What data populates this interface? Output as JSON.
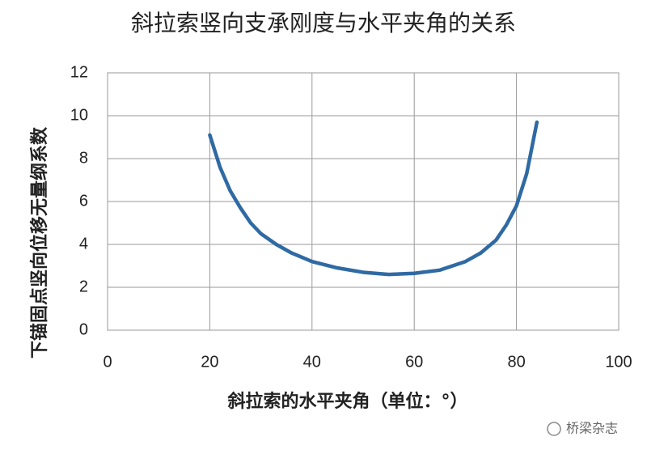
{
  "chart_data": {
    "type": "line",
    "title": "斜拉索竖向支承刚度与水平夹角的关系",
    "x_label": "斜拉索的水平夹角（单位：°）",
    "y_label": "下锚固点竖向位移无量纲系数",
    "watermark": "桥梁杂志",
    "x": [
      20,
      22,
      24,
      26,
      28,
      30,
      33,
      36,
      40,
      45,
      50,
      55,
      60,
      65,
      70,
      73,
      76,
      78,
      80,
      82,
      84
    ],
    "series": [
      {
        "color": "#2f6aa3",
        "values": [
          9.1,
          7.6,
          6.5,
          5.7,
          5.0,
          4.5,
          4.0,
          3.6,
          3.2,
          2.9,
          2.7,
          2.6,
          2.65,
          2.8,
          3.2,
          3.6,
          4.2,
          4.9,
          5.8,
          7.3,
          9.7
        ]
      }
    ],
    "xlim": [
      0,
      100
    ],
    "xticks": [
      0,
      20,
      40,
      60,
      80,
      100
    ],
    "ylim": [
      0,
      12
    ],
    "yticks": [
      0,
      2,
      4,
      6,
      8,
      10,
      12
    ],
    "grid": true
  }
}
